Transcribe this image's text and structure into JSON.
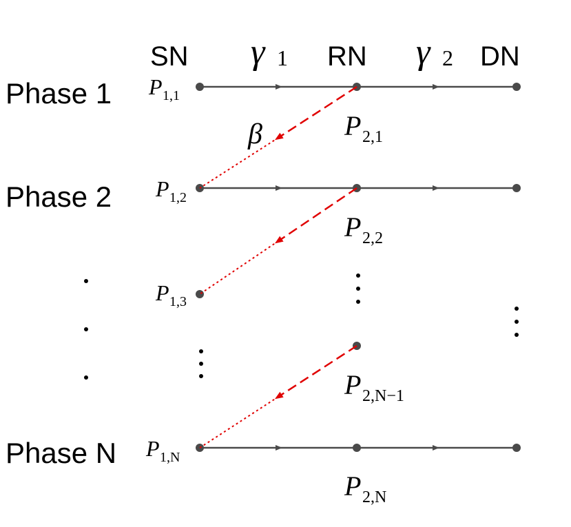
{
  "columns": {
    "sn": "SN",
    "rn": "RN",
    "dn": "DN"
  },
  "links": {
    "gamma1": {
      "symbol": "γ",
      "sub": "1"
    },
    "gamma2": {
      "symbol": "γ",
      "sub": "2"
    },
    "beta": "β"
  },
  "phases": {
    "p1": "Phase 1",
    "p2": "Phase 2",
    "pn": "Phase N"
  },
  "powers": {
    "p11": {
      "base": "P",
      "sub": "1,1"
    },
    "p12": {
      "base": "P",
      "sub": "1,2"
    },
    "p13": {
      "base": "P",
      "sub": "1,3"
    },
    "p1n": {
      "base": "P",
      "sub": "1,N"
    },
    "p21": {
      "base": "P",
      "sub": "2,1"
    },
    "p22": {
      "base": "P",
      "sub": "2,2"
    },
    "p2n1": {
      "base": "P",
      "sub": "2,N−1"
    },
    "p2n": {
      "base": "P",
      "sub": "2,N"
    }
  },
  "colors": {
    "node": "#4a4a4a",
    "link": "#4a4a4a",
    "feedback": "#e00000"
  }
}
